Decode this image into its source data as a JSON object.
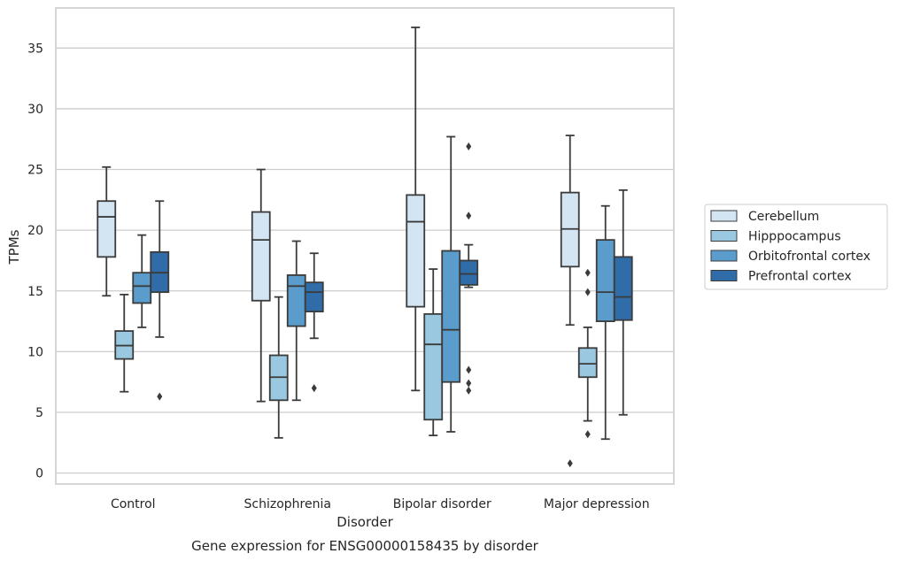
{
  "chart_data": {
    "type": "box",
    "title": "Gene expression for ENSG00000158435 by disorder",
    "xlabel": "Disorder",
    "ylabel": "TPMs",
    "ylim": [
      -0.9,
      38.3
    ],
    "yticks": [
      0,
      5,
      10,
      15,
      20,
      25,
      30,
      35
    ],
    "grid": true,
    "legend_placement": "right-center",
    "categories": [
      "Control",
      "Schizophrenia",
      "Bipolar disorder",
      "Major depression"
    ],
    "series": [
      {
        "name": "Cerebellum",
        "color": "#d3e4f3",
        "boxes": [
          {
            "whislo": 14.6,
            "q1": 17.8,
            "med": 21.1,
            "q3": 22.4,
            "whishi": 25.2,
            "fliers": []
          },
          {
            "whislo": 5.9,
            "q1": 14.2,
            "med": 19.2,
            "q3": 21.5,
            "whishi": 25.0,
            "fliers": []
          },
          {
            "whislo": 6.8,
            "q1": 13.7,
            "med": 20.7,
            "q3": 22.9,
            "whishi": 36.7,
            "fliers": []
          },
          {
            "whislo": 12.2,
            "q1": 17.0,
            "med": 20.1,
            "q3": 23.1,
            "whishi": 27.8,
            "fliers": [
              0.8
            ]
          }
        ]
      },
      {
        "name": "Hipppocampus",
        "color": "#9ac8e0",
        "boxes": [
          {
            "whislo": 6.7,
            "q1": 9.4,
            "med": 10.5,
            "q3": 11.7,
            "whishi": 14.7,
            "fliers": []
          },
          {
            "whislo": 2.9,
            "q1": 6.0,
            "med": 7.9,
            "q3": 9.7,
            "whishi": 14.5,
            "fliers": []
          },
          {
            "whislo": 3.1,
            "q1": 4.4,
            "med": 10.6,
            "q3": 13.1,
            "whishi": 16.8,
            "fliers": []
          },
          {
            "whislo": 4.3,
            "q1": 7.9,
            "med": 9.0,
            "q3": 10.3,
            "whishi": 12.0,
            "fliers": [
              3.2,
              14.9,
              16.5
            ]
          }
        ]
      },
      {
        "name": "Orbitofrontal cortex",
        "color": "#5a9dcc",
        "boxes": [
          {
            "whislo": 12.0,
            "q1": 14.0,
            "med": 15.4,
            "q3": 16.5,
            "whishi": 19.6,
            "fliers": []
          },
          {
            "whislo": 6.0,
            "q1": 12.1,
            "med": 15.4,
            "q3": 16.3,
            "whishi": 19.1,
            "fliers": []
          },
          {
            "whislo": 3.4,
            "q1": 7.5,
            "med": 11.8,
            "q3": 18.3,
            "whishi": 27.7,
            "fliers": []
          },
          {
            "whislo": 2.8,
            "q1": 12.5,
            "med": 14.9,
            "q3": 19.2,
            "whishi": 22.0,
            "fliers": []
          }
        ]
      },
      {
        "name": "Prefrontal cortex",
        "color": "#2f6ca8",
        "boxes": [
          {
            "whislo": 11.2,
            "q1": 14.9,
            "med": 16.5,
            "q3": 18.2,
            "whishi": 22.4,
            "fliers": [
              6.3
            ]
          },
          {
            "whislo": 11.1,
            "q1": 13.3,
            "med": 14.9,
            "q3": 15.7,
            "whishi": 18.1,
            "fliers": [
              7.0
            ]
          },
          {
            "whislo": 15.3,
            "q1": 15.5,
            "med": 16.4,
            "q3": 17.5,
            "whishi": 18.8,
            "fliers": [
              6.8,
              7.4,
              8.5,
              21.2,
              26.9
            ]
          },
          {
            "whislo": 4.8,
            "q1": 12.6,
            "med": 14.5,
            "q3": 17.8,
            "whishi": 23.3,
            "fliers": []
          }
        ]
      }
    ]
  }
}
